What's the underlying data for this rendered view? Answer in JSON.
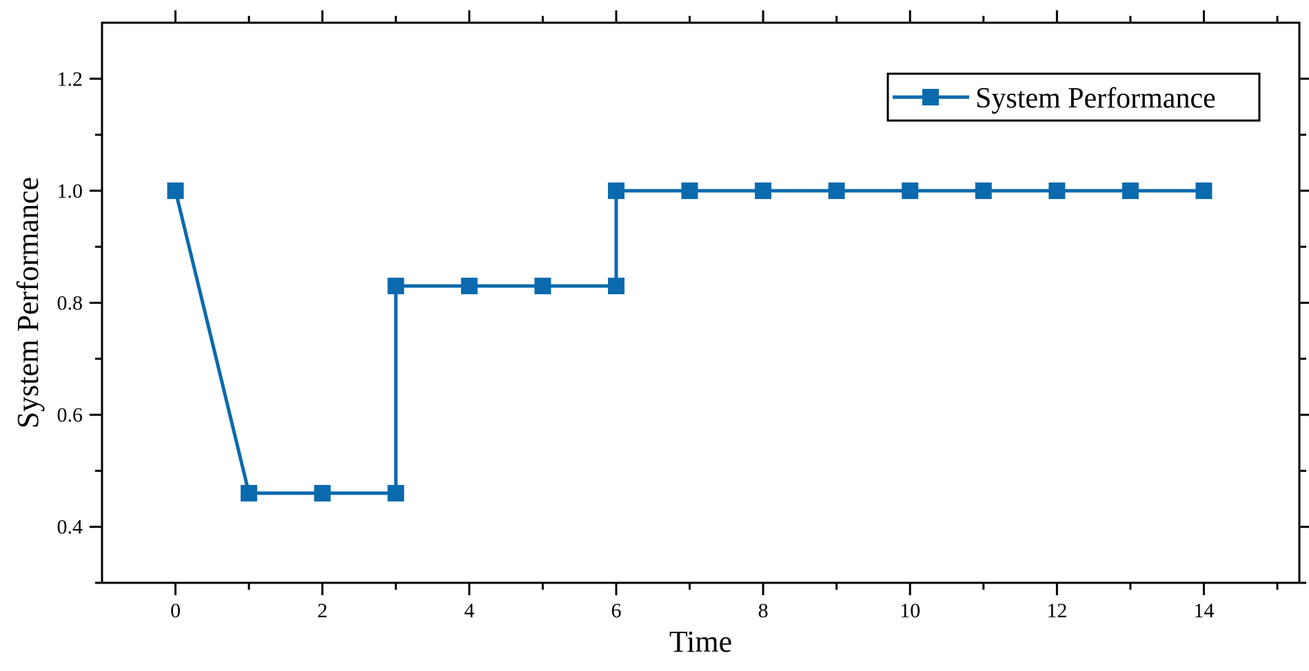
{
  "chart_data": {
    "type": "line",
    "xlabel": "Time",
    "ylabel": "System Performance",
    "xlim": [
      -1,
      15.3
    ],
    "ylim": [
      0.3,
      1.3
    ],
    "x_ticks": [
      0,
      2,
      4,
      6,
      8,
      10,
      12,
      14
    ],
    "x_tick_labels": [
      "0",
      "2",
      "4",
      "6",
      "8",
      "10",
      "12",
      "14"
    ],
    "y_ticks": [
      0.4,
      0.6,
      0.8,
      1.0,
      1.2
    ],
    "y_tick_labels": [
      "0.4",
      "0.6",
      "0.8",
      "1.0",
      "1.2"
    ],
    "legend_position": "top-right",
    "grid": false,
    "series": [
      {
        "name": "System Performance",
        "color": "#0a6aad",
        "marker": "square",
        "points": [
          [
            0,
            1.0
          ],
          [
            1,
            0.46
          ],
          [
            2,
            0.46
          ],
          [
            3,
            0.46
          ],
          [
            3,
            0.83
          ],
          [
            4,
            0.83
          ],
          [
            5,
            0.83
          ],
          [
            6,
            0.83
          ],
          [
            6,
            1.0
          ],
          [
            7,
            1.0
          ],
          [
            8,
            1.0
          ],
          [
            9,
            1.0
          ],
          [
            10,
            1.0
          ],
          [
            11,
            1.0
          ],
          [
            12,
            1.0
          ],
          [
            13,
            1.0
          ],
          [
            14,
            1.0
          ]
        ]
      }
    ]
  }
}
